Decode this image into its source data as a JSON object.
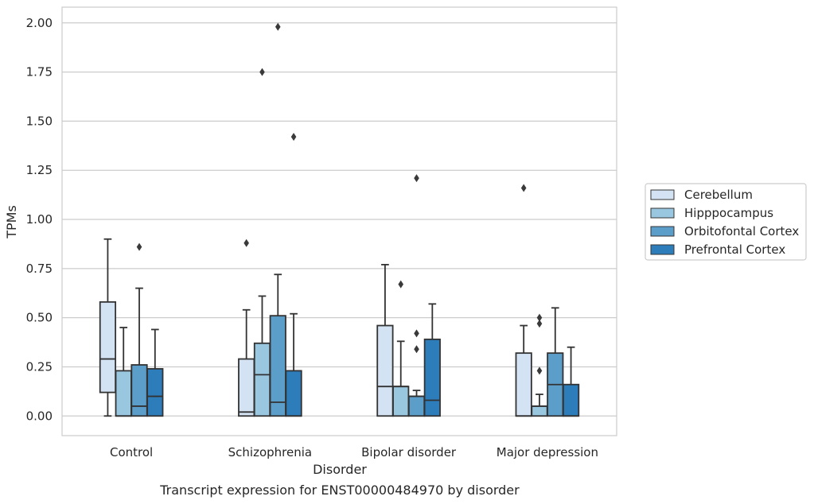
{
  "chart_data": {
    "type": "box",
    "title": "Transcript expression for ENST00000484970 by disorder",
    "xlabel": "Disorder",
    "ylabel": "TPMs",
    "ylim": [
      -0.1,
      2.08
    ],
    "yticks": [
      "0.00",
      "0.25",
      "0.50",
      "0.75",
      "1.00",
      "1.25",
      "1.50",
      "1.75",
      "2.00"
    ],
    "grid": "horizontal",
    "legend_position": "right",
    "categories": [
      "Control",
      "Schizophrenia",
      "Bipolar disorder",
      "Major depression"
    ],
    "series": [
      {
        "name": "Cerebellum",
        "color": "#d3e3f3",
        "boxes": [
          {
            "whislo": 0.0,
            "q1": 0.12,
            "med": 0.29,
            "q3": 0.58,
            "whishi": 0.9,
            "fliers": []
          },
          {
            "whislo": 0.0,
            "q1": 0.0,
            "med": 0.02,
            "q3": 0.29,
            "whishi": 0.54,
            "fliers": [
              0.88
            ]
          },
          {
            "whislo": 0.0,
            "q1": 0.0,
            "med": 0.15,
            "q3": 0.46,
            "whishi": 0.77,
            "fliers": []
          },
          {
            "whislo": 0.0,
            "q1": 0.0,
            "med": 0.0,
            "q3": 0.32,
            "whishi": 0.46,
            "fliers": [
              1.16
            ]
          }
        ]
      },
      {
        "name": "Hipppocampus",
        "color": "#9ac7e0",
        "boxes": [
          {
            "whislo": 0.0,
            "q1": 0.0,
            "med": 0.0,
            "q3": 0.23,
            "whishi": 0.45,
            "fliers": []
          },
          {
            "whislo": 0.0,
            "q1": 0.0,
            "med": 0.21,
            "q3": 0.37,
            "whishi": 0.61,
            "fliers": [
              1.75
            ]
          },
          {
            "whislo": 0.0,
            "q1": 0.0,
            "med": 0.15,
            "q3": 0.15,
            "whishi": 0.38,
            "fliers": [
              0.67
            ]
          },
          {
            "whislo": 0.0,
            "q1": 0.0,
            "med": 0.05,
            "q3": 0.05,
            "whishi": 0.11,
            "fliers": [
              0.23,
              0.47,
              0.5
            ]
          }
        ]
      },
      {
        "name": "Orbitofontal Cortex",
        "color": "#5b9ec9",
        "boxes": [
          {
            "whislo": 0.0,
            "q1": 0.0,
            "med": 0.05,
            "q3": 0.26,
            "whishi": 0.65,
            "fliers": [
              0.86
            ]
          },
          {
            "whislo": 0.0,
            "q1": 0.0,
            "med": 0.07,
            "q3": 0.51,
            "whishi": 0.72,
            "fliers": [
              1.98
            ]
          },
          {
            "whislo": 0.0,
            "q1": 0.0,
            "med": 0.1,
            "q3": 0.1,
            "whishi": 0.13,
            "fliers": [
              0.34,
              0.42,
              1.21
            ]
          },
          {
            "whislo": 0.0,
            "q1": 0.0,
            "med": 0.16,
            "q3": 0.32,
            "whishi": 0.55,
            "fliers": []
          }
        ]
      },
      {
        "name": "Prefrontal Cortex",
        "color": "#2d7dbb",
        "boxes": [
          {
            "whislo": 0.0,
            "q1": 0.0,
            "med": 0.1,
            "q3": 0.24,
            "whishi": 0.44,
            "fliers": []
          },
          {
            "whislo": 0.0,
            "q1": 0.0,
            "med": 0.0,
            "q3": 0.23,
            "whishi": 0.52,
            "fliers": [
              1.42
            ]
          },
          {
            "whislo": 0.0,
            "q1": 0.0,
            "med": 0.08,
            "q3": 0.39,
            "whishi": 0.57,
            "fliers": []
          },
          {
            "whislo": 0.0,
            "q1": 0.0,
            "med": 0.0,
            "q3": 0.16,
            "whishi": 0.35,
            "fliers": []
          }
        ]
      }
    ]
  }
}
